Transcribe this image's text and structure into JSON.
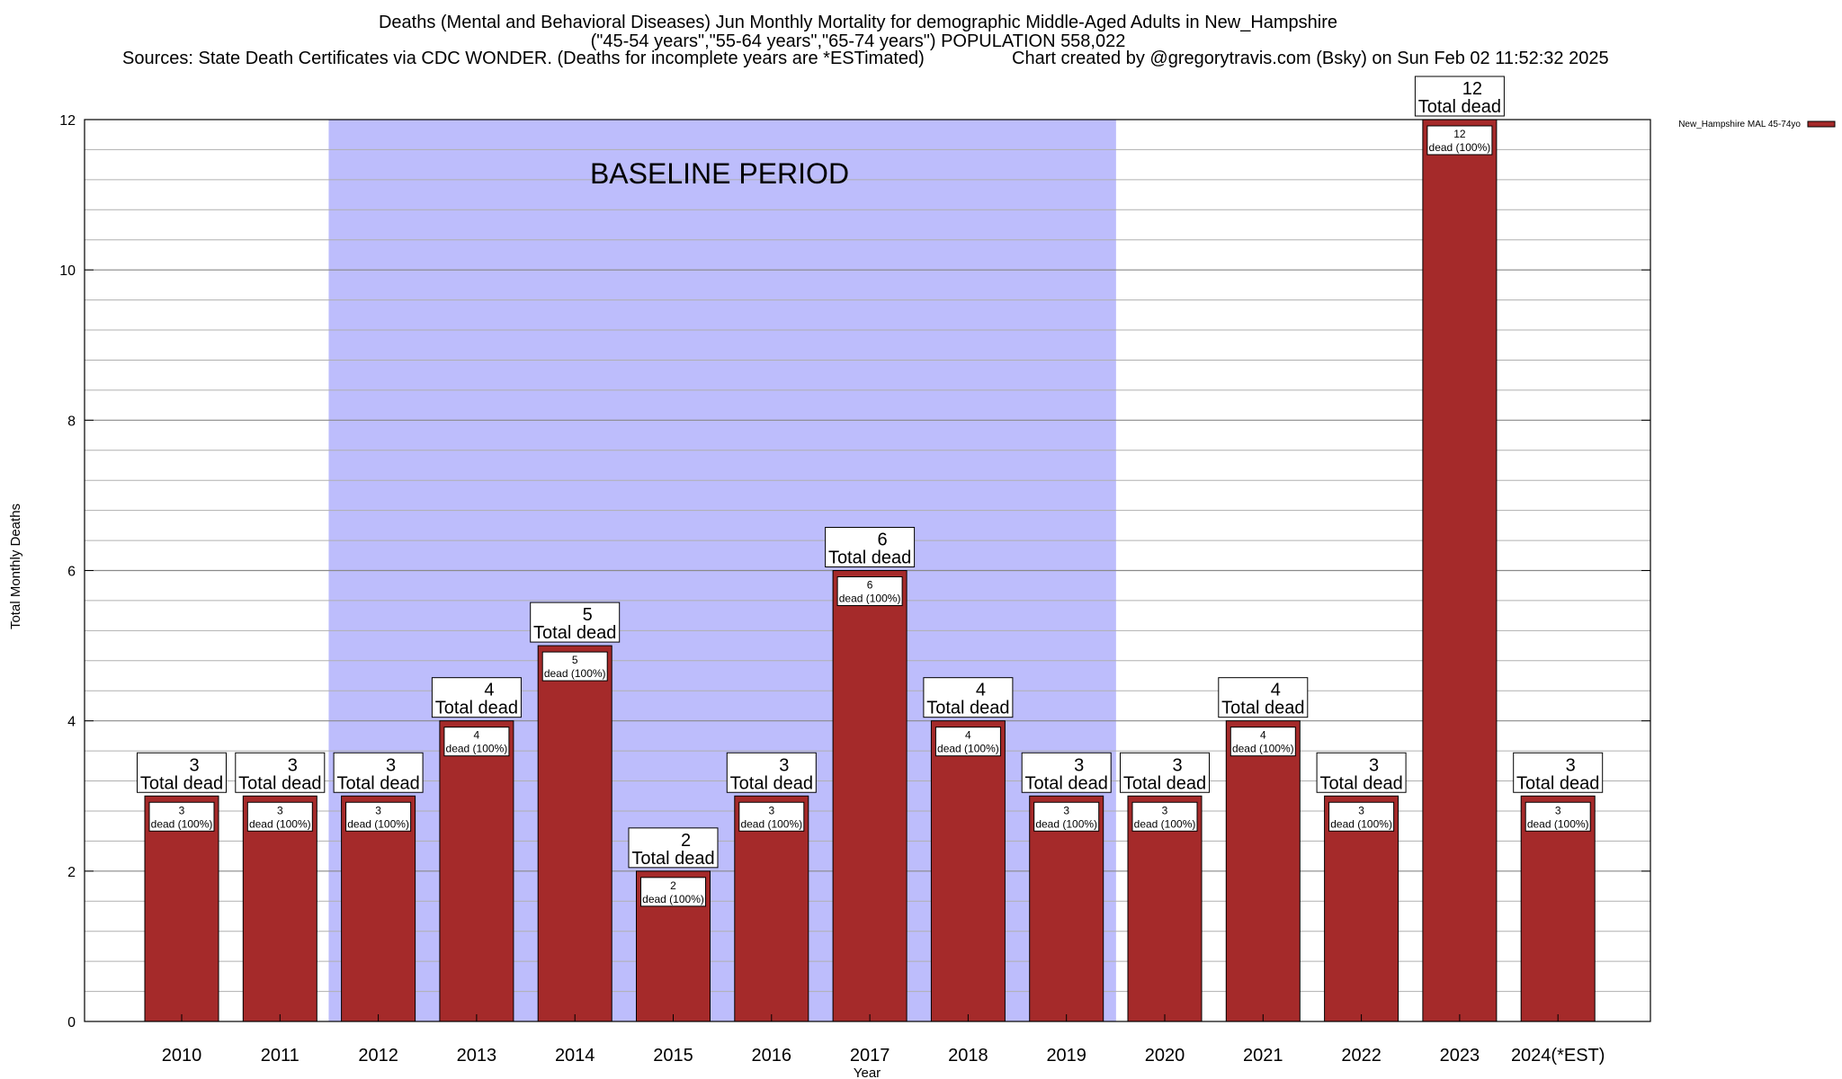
{
  "header": {
    "line1": "Deaths (Mental and Behavioral Diseases) Jun Monthly Mortality for demographic Middle-Aged Adults in New_Hampshire",
    "line2": "(\"45-54 years\",\"55-64 years\",\"65-74 years\") POPULATION 558,022",
    "sources": "Sources: State Death Certificates via CDC WONDER. (Deaths for incomplete years are *ESTimated)",
    "credit": "Chart created by @gregorytravis.com (Bsky) on Sun Feb 02 11:52:32 2025"
  },
  "chart_data": {
    "type": "bar",
    "title": "Deaths (Mental and Behavioral Diseases) Jun Monthly Mortality for demographic Middle-Aged Adults in New_Hampshire",
    "xlabel": "Year",
    "ylabel": "Total Monthly Deaths",
    "ylim": [
      0,
      12
    ],
    "yticks": [
      0,
      2,
      4,
      6,
      8,
      10,
      12
    ],
    "minor_grid_step": 0.4,
    "grid": true,
    "legend_position": "top-right",
    "categories": [
      "2010",
      "2011",
      "2012",
      "2013",
      "2014",
      "2015",
      "2016",
      "2017",
      "2018",
      "2019",
      "2020",
      "2021",
      "2022",
      "2023",
      "2024(*EST)"
    ],
    "series": [
      {
        "name": "New_Hampshire MAL 45-74yo",
        "color": "#a52a2a",
        "values": [
          3,
          3,
          3,
          4,
          5,
          2,
          3,
          6,
          4,
          3,
          3,
          4,
          3,
          12,
          3
        ]
      }
    ],
    "total_label": "Total dead",
    "inner_label_suffix": "dead (100%)",
    "baseline": {
      "label": "BASELINE PERIOD",
      "from": "2012",
      "to": "2019",
      "color": "#bdbdfc"
    }
  }
}
